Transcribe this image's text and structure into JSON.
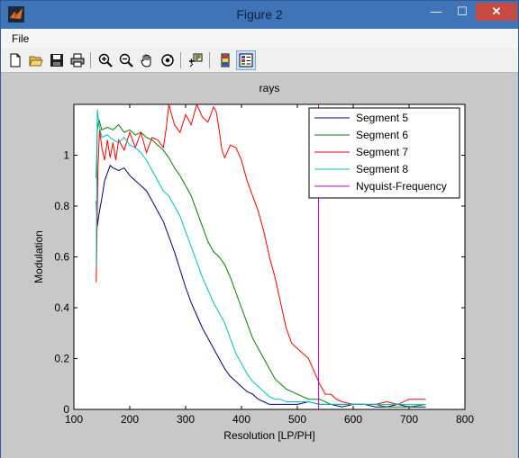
{
  "window": {
    "title": "Figure 2",
    "minimize_glyph": "—",
    "maximize_glyph": "☐",
    "close_glyph": "✕"
  },
  "menu": {
    "items": [
      {
        "label": "File"
      }
    ]
  },
  "toolbar": {
    "buttons": [
      {
        "icon": "new-figure-icon"
      },
      {
        "icon": "open-file-icon"
      },
      {
        "icon": "save-icon"
      },
      {
        "icon": "print-icon"
      },
      {
        "icon": "zoom-in-icon"
      },
      {
        "icon": "zoom-out-icon"
      },
      {
        "icon": "pan-hand-icon"
      },
      {
        "icon": "rotate-3d-icon"
      },
      {
        "icon": "data-cursor-icon"
      },
      {
        "icon": "colorbar-icon"
      },
      {
        "icon": "legend-icon"
      }
    ]
  },
  "chart_data": {
    "type": "line",
    "title": "rays",
    "xlabel": "Resolution [LP/PH]",
    "ylabel": "Modulation",
    "xlim": [
      100,
      800
    ],
    "ylim": [
      0,
      1.2
    ],
    "xticks": [
      "100",
      "200",
      "300",
      "400",
      "500",
      "600",
      "700",
      "800"
    ],
    "yticks": [
      "0",
      "0.2",
      "0.4",
      "0.6",
      "0.8",
      "1"
    ],
    "xtick_values": [
      100,
      200,
      300,
      400,
      500,
      600,
      700,
      800
    ],
    "ytick_values": [
      0,
      0.2,
      0.4,
      0.6,
      0.8,
      1
    ],
    "grid": false,
    "legend_position": "top-right",
    "series": [
      {
        "name": "Segment 5",
        "color": "#00007f",
        "x": [
          140,
          142,
          145,
          150,
          155,
          160,
          165,
          170,
          180,
          190,
          200,
          210,
          220,
          230,
          240,
          250,
          260,
          270,
          280,
          290,
          300,
          310,
          320,
          330,
          340,
          350,
          360,
          370,
          380,
          390,
          400,
          410,
          420,
          430,
          440,
          450,
          460,
          470,
          480,
          490,
          500,
          520,
          540,
          560,
          580,
          600,
          620,
          640,
          660,
          680,
          700,
          730
        ],
        "y": [
          0.82,
          0.72,
          0.77,
          0.83,
          0.9,
          0.93,
          0.96,
          0.95,
          0.94,
          0.95,
          0.92,
          0.9,
          0.88,
          0.86,
          0.82,
          0.78,
          0.74,
          0.68,
          0.62,
          0.55,
          0.48,
          0.42,
          0.37,
          0.32,
          0.28,
          0.24,
          0.2,
          0.16,
          0.13,
          0.11,
          0.09,
          0.07,
          0.06,
          0.04,
          0.03,
          0.02,
          0.02,
          0.02,
          0.02,
          0.02,
          0.02,
          0.03,
          0.02,
          0.02,
          0.01,
          0.02,
          0.02,
          0.01,
          0.01,
          0.02,
          0.01,
          0.01
        ]
      },
      {
        "name": "Segment 6",
        "color": "#007f00",
        "x": [
          140,
          142,
          145,
          150,
          160,
          170,
          180,
          190,
          200,
          210,
          220,
          230,
          240,
          250,
          260,
          270,
          280,
          290,
          300,
          310,
          320,
          330,
          340,
          350,
          360,
          370,
          380,
          390,
          400,
          410,
          420,
          430,
          440,
          450,
          460,
          470,
          480,
          490,
          500,
          520,
          540,
          560,
          580,
          600,
          620,
          640,
          660,
          680,
          700,
          730
        ],
        "y": [
          0.91,
          1.1,
          1.14,
          1.1,
          1.11,
          1.1,
          1.12,
          1.09,
          1.1,
          1.08,
          1.09,
          1.07,
          1.06,
          1.04,
          1.02,
          0.99,
          0.95,
          0.92,
          0.88,
          0.84,
          0.78,
          0.72,
          0.66,
          0.62,
          0.6,
          0.57,
          0.52,
          0.46,
          0.4,
          0.34,
          0.28,
          0.24,
          0.2,
          0.16,
          0.12,
          0.1,
          0.08,
          0.07,
          0.06,
          0.04,
          0.04,
          0.02,
          0.02,
          0.02,
          0.02,
          0.02,
          0.01,
          0.01,
          0.01,
          0.02
        ]
      },
      {
        "name": "Segment 7",
        "color": "#ff0000",
        "x": [
          140,
          143,
          146,
          150,
          155,
          160,
          165,
          170,
          175,
          180,
          190,
          200,
          210,
          220,
          230,
          240,
          250,
          260,
          265,
          270,
          280,
          290,
          300,
          310,
          320,
          330,
          340,
          350,
          355,
          360,
          365,
          370,
          380,
          390,
          400,
          410,
          420,
          430,
          440,
          450,
          460,
          470,
          480,
          490,
          500,
          510,
          520,
          530,
          540,
          550,
          560,
          570,
          580,
          600,
          620,
          640,
          660,
          680,
          700,
          730
        ],
        "y": [
          0.5,
          0.95,
          1.1,
          1.03,
          0.98,
          1.06,
          0.99,
          1.05,
          0.98,
          1.06,
          1.02,
          1.09,
          1.03,
          1.09,
          1.01,
          1.07,
          1.06,
          1.03,
          1.1,
          1.2,
          1.12,
          1.09,
          1.16,
          1.12,
          1.2,
          1.15,
          1.13,
          1.19,
          1.17,
          1.1,
          1.02,
          0.99,
          1.04,
          1.03,
          0.98,
          0.9,
          0.84,
          0.78,
          0.7,
          0.6,
          0.52,
          0.42,
          0.32,
          0.26,
          0.24,
          0.22,
          0.2,
          0.15,
          0.1,
          0.06,
          0.06,
          0.04,
          0.03,
          0.02,
          0.02,
          0.02,
          0.03,
          0.02,
          0.04,
          0.04
        ]
      },
      {
        "name": "Segment 8",
        "color": "#00bfbf",
        "x": [
          140,
          142,
          145,
          150,
          160,
          170,
          180,
          190,
          200,
          210,
          220,
          230,
          240,
          250,
          260,
          270,
          280,
          290,
          300,
          310,
          320,
          330,
          340,
          350,
          360,
          370,
          380,
          390,
          400,
          410,
          420,
          430,
          440,
          450,
          460,
          470,
          480,
          490,
          500,
          520,
          540,
          560,
          580,
          600,
          620,
          640,
          660,
          680,
          700,
          730
        ],
        "y": [
          0.56,
          1.18,
          1.12,
          1.07,
          1.08,
          1.06,
          1.05,
          1.07,
          1.04,
          1.03,
          1.01,
          0.98,
          0.94,
          0.9,
          0.86,
          0.84,
          0.8,
          0.76,
          0.7,
          0.64,
          0.58,
          0.52,
          0.47,
          0.42,
          0.38,
          0.34,
          0.28,
          0.22,
          0.18,
          0.14,
          0.11,
          0.09,
          0.07,
          0.05,
          0.04,
          0.04,
          0.03,
          0.03,
          0.03,
          0.03,
          0.02,
          0.02,
          0.02,
          0.02,
          0.02,
          0.02,
          0.02,
          0.02,
          0.02,
          0.02
        ]
      },
      {
        "name": "Nyquist-Frequency",
        "color": "#bf00bf",
        "x": [
          538,
          538
        ],
        "y": [
          0,
          1.2
        ]
      }
    ]
  }
}
